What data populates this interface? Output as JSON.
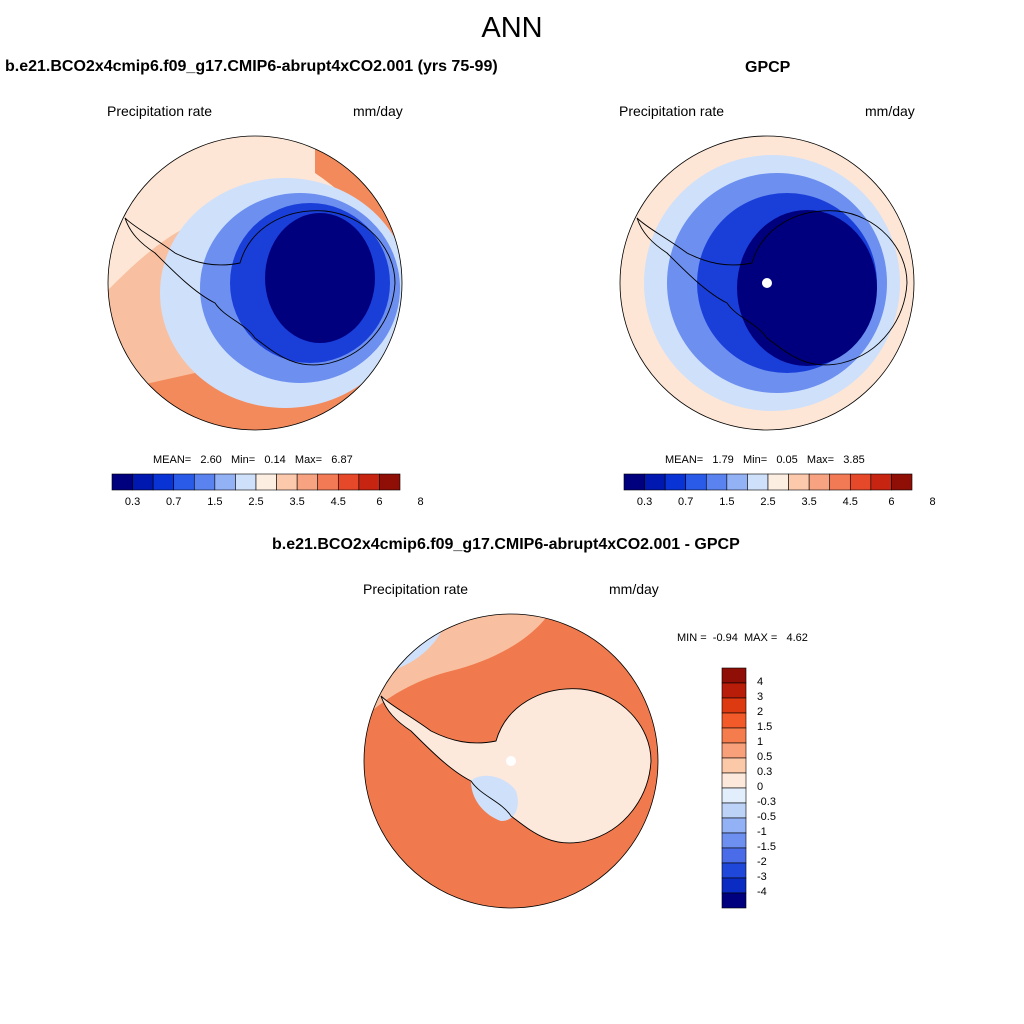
{
  "title": "ANN",
  "panels": [
    {
      "title": "b.e21.BCO2x4cmip6.f09_g17.CMIP6-abrupt4xCO2.001 (yrs 75-99)",
      "left_label": "Precipitation rate",
      "right_label": "mm/day",
      "stats": {
        "mean_label": "MEAN=",
        "mean": "2.60",
        "min_label": "Min=",
        "min": "0.14",
        "max_label": "Max=",
        "max": "6.87"
      }
    },
    {
      "title": "GPCP",
      "left_label": "Precipitation rate",
      "right_label": "mm/day",
      "stats": {
        "mean_label": "MEAN=",
        "mean": "1.79",
        "min_label": "Min=",
        "min": "0.05",
        "max_label": "Max=",
        "max": "3.85"
      }
    },
    {
      "title": "b.e21.BCO2x4cmip6.f09_g17.CMIP6-abrupt4xCO2.001 - GPCP",
      "left_label": "Precipitation rate",
      "right_label": "mm/day",
      "stats": {
        "min_label": "MIN =",
        "min": "-0.94",
        "max_label": "MAX =",
        "max": "4.62"
      }
    }
  ],
  "colorbar_abs": {
    "colors": [
      "#00007f",
      "#0018b0",
      "#0a33d6",
      "#2a5ae8",
      "#5a83f0",
      "#93b2f5",
      "#cfe0fa",
      "#fdeee2",
      "#fcc9ad",
      "#f7a281",
      "#f27b55",
      "#e5492a",
      "#c82412",
      "#8f0e05"
    ],
    "tick_labels": [
      "0.3",
      "0.7",
      "1.5",
      "2.5",
      "3.5",
      "4.5",
      "6",
      "8"
    ]
  },
  "colorbar_diff": {
    "colors_top_to_bottom": [
      "#8f0e05",
      "#b81d0a",
      "#de3a12",
      "#f25a2a",
      "#f57d4d",
      "#f8a07a",
      "#fbc8a8",
      "#fde9dc",
      "#e2eefb",
      "#bcd2f7",
      "#93b2f5",
      "#6c8ff0",
      "#4a6ce8",
      "#1f47d9",
      "#0a2cc2",
      "#00007f"
    ],
    "labels_top_to_bottom": [
      "4",
      "3",
      "2",
      "1.5",
      "1",
      "0.5",
      "0.3",
      "0",
      "-0.3",
      "-0.5",
      "-1",
      "-1.5",
      "-2",
      "-3",
      "-4"
    ]
  },
  "map_colors": {
    "ocean_warm": "#f8c0a0",
    "ocean_light": "#fde6d6",
    "ocean_orange": "#f28a5c",
    "ice_blue_light": "#cfe0fa",
    "ice_blue_mid": "#6c8ff0",
    "ice_blue_deep": "#1a3fd9",
    "ice_navy": "#00007f",
    "diff_ocean": "#f07a4e",
    "diff_land": "#fde9dc",
    "coastline": "#000000"
  }
}
